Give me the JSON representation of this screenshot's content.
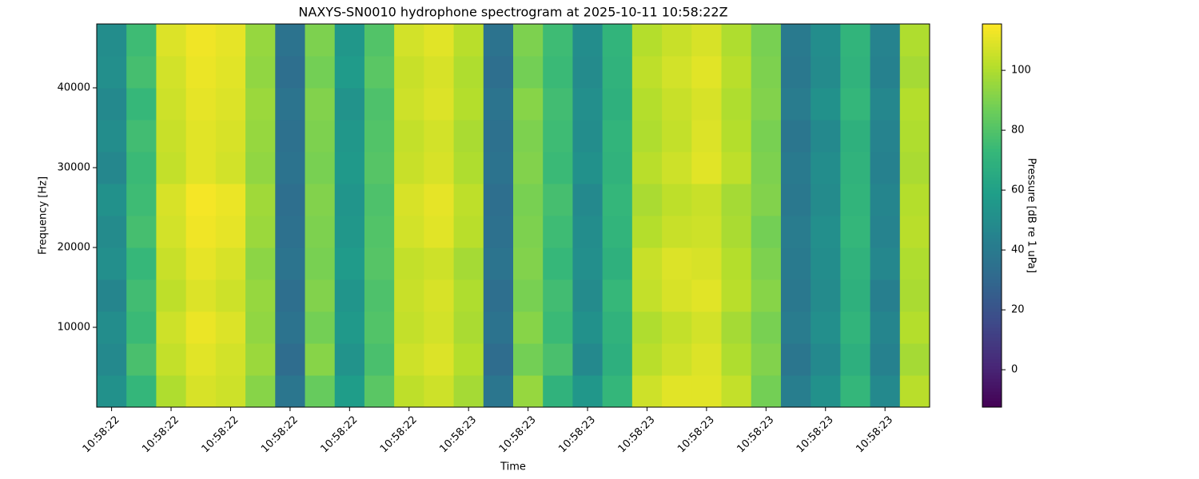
{
  "chart_data": {
    "type": "heatmap",
    "title": "NAXYS-SN0010 hydrophone spectrogram at 2025-10-11 10:58:22Z",
    "xlabel": "Time",
    "ylabel": "Frequency [Hz]",
    "categories": [
      "10:58:22",
      null,
      "10:58:22",
      null,
      "10:58:22",
      null,
      "10:58:22",
      null,
      "10:58:22",
      null,
      "10:58:22",
      null,
      "10:58:23",
      null,
      "10:58:23",
      null,
      "10:58:23",
      null,
      "10:58:23",
      null,
      "10:58:23",
      null,
      "10:58:23",
      null,
      "10:58:23",
      null,
      "10:58:23",
      null
    ],
    "y_bins": [
      0,
      4000,
      8000,
      12000,
      16000,
      20000,
      24000,
      28000,
      32000,
      36000,
      40000,
      44000,
      48000
    ],
    "ylim": [
      0,
      48000
    ],
    "yticks": [
      10000,
      20000,
      30000,
      40000
    ],
    "colormap": "viridis",
    "colorbar": {
      "label": "Pressure [dB re 1 uPa]",
      "lim": [
        -12.5,
        115.5
      ],
      "ticks": [
        0,
        20,
        40,
        60,
        80,
        100
      ]
    },
    "z": [
      [
        52,
        72,
        100,
        108,
        106,
        92,
        38,
        85,
        58,
        82,
        103,
        106,
        98,
        38,
        95,
        70,
        55,
        72,
        106,
        110,
        110,
        104,
        88,
        42,
        52,
        72,
        48,
        102
      ],
      [
        48,
        78,
        104,
        110,
        107,
        96,
        33,
        92,
        53,
        78,
        106,
        109,
        101,
        33,
        88,
        78,
        48,
        68,
        102,
        106,
        109,
        100,
        91,
        38,
        48,
        68,
        44,
        98
      ],
      [
        50,
        74,
        106,
        112,
        109,
        94,
        36,
        88,
        56,
        80,
        104,
        107,
        99,
        36,
        92,
        74,
        52,
        70,
        100,
        104,
        107,
        98,
        89,
        41,
        51,
        71,
        46,
        101
      ],
      [
        46,
        76,
        103,
        109,
        106,
        95,
        34,
        91,
        54,
        79,
        105,
        108,
        100,
        34,
        89,
        76,
        49,
        73,
        104,
        108,
        110,
        102,
        92,
        39,
        49,
        69,
        43,
        99
      ],
      [
        51,
        73,
        105,
        111,
        108,
        93,
        37,
        89,
        57,
        81,
        104,
        106,
        98,
        37,
        91,
        73,
        51,
        69,
        105,
        109,
        108,
        101,
        90,
        40,
        50,
        70,
        47,
        100
      ],
      [
        49,
        77,
        107,
        113,
        111,
        96,
        35,
        90,
        55,
        80,
        107,
        110,
        102,
        35,
        90,
        75,
        50,
        71,
        101,
        105,
        106,
        99,
        88,
        41,
        51,
        72,
        45,
        102
      ],
      [
        52,
        75,
        108,
        114,
        112,
        97,
        34,
        91,
        54,
        79,
        108,
        111,
        103,
        34,
        89,
        77,
        48,
        72,
        99,
        103,
        105,
        98,
        91,
        39,
        49,
        71,
        46,
        101
      ],
      [
        47,
        74,
        104,
        110,
        107,
        94,
        36,
        89,
        56,
        81,
        105,
        108,
        100,
        36,
        91,
        74,
        52,
        70,
        102,
        106,
        110,
        103,
        90,
        40,
        50,
        70,
        44,
        99
      ],
      [
        50,
        76,
        105,
        110,
        108,
        95,
        35,
        90,
        55,
        80,
        104,
        107,
        99,
        35,
        90,
        75,
        50,
        71,
        100,
        104,
        109,
        101,
        89,
        38,
        48,
        69,
        45,
        100
      ],
      [
        48,
        73,
        106,
        111,
        109,
        96,
        37,
        91,
        53,
        79,
        106,
        109,
        101,
        37,
        92,
        76,
        51,
        69,
        101,
        105,
        108,
        100,
        91,
        41,
        52,
        72,
        47,
        101
      ],
      [
        51,
        77,
        107,
        112,
        110,
        94,
        34,
        88,
        57,
        82,
        105,
        108,
        100,
        34,
        88,
        74,
        49,
        70,
        103,
        107,
        110,
        102,
        90,
        39,
        49,
        70,
        44,
        98
      ],
      [
        50,
        75,
        109,
        113,
        111,
        95,
        36,
        90,
        55,
        80,
        107,
        110,
        102,
        36,
        90,
        75,
        50,
        71,
        101,
        105,
        108,
        100,
        89,
        40,
        50,
        71,
        45,
        100
      ]
    ]
  }
}
